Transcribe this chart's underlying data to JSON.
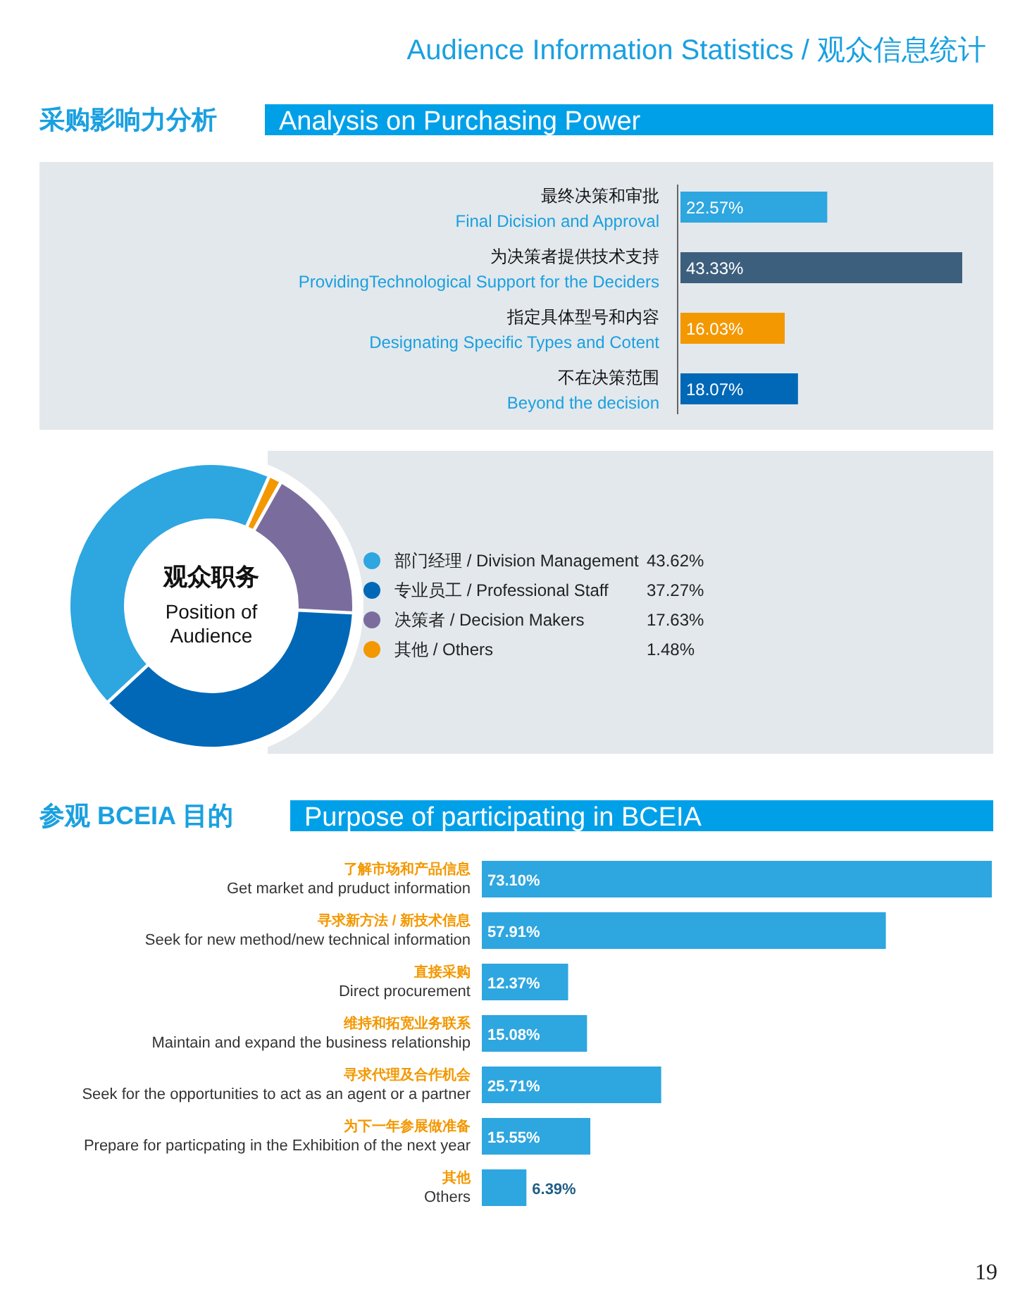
{
  "chart_data": [
    {
      "type": "bar",
      "orientation": "horizontal",
      "title": "采购影响力分析",
      "subtitle": "Analysis on Purchasing Power",
      "annotations": [
        "Audience Information Statistics / 观众信息统计"
      ],
      "categories": [
        "最终决策和审批\nFinal Dicision and Approval",
        "为决策者提供技术支持\nProvidingTechnological Support for the Deciders",
        "指定具体型号和内容\nDesignating Specific Types and Cotent",
        "不在决策范围\nBeyond the decision"
      ],
      "values": [
        22.57,
        43.33,
        16.03,
        18.07
      ],
      "colors": [
        "#2ea6e0",
        "#3d5f7e",
        "#f39800",
        "#0068b7"
      ],
      "value_labels": [
        "22.57%",
        "43.33%",
        "16.03%",
        "18.07%"
      ]
    },
    {
      "type": "donut",
      "title": "观众职务",
      "subtitle": "Position of Audience",
      "legend": "right",
      "categories": [
        "部门经理 / Division Management",
        "专业员工 / Professional Staff",
        "决策者 / Decision Makers",
        "其他 / Others"
      ],
      "values": [
        43.62,
        37.27,
        17.63,
        1.48
      ],
      "colors": [
        "#2ea6e0",
        "#0068b7",
        "#7a6d9e",
        "#f39800"
      ],
      "value_labels": [
        "43.62%",
        "37.27%",
        "17.63%",
        "1.48%"
      ]
    },
    {
      "type": "bar",
      "orientation": "horizontal",
      "title": "参观 BCEIA 目的",
      "subtitle": "Purpose of participating in BCEIA",
      "annotations": [
        "19"
      ],
      "categories": [
        "了解市场和产品信息\nGet market and pruduct information",
        "寻求新方法 / 新技术信息\nSeek for new method/new technical information",
        "直接采购\nDirect procurement",
        "维持和拓宽业务联系\nMaintain and expand the business relationship",
        "寻求代理及合作机会\nSeek for the opportunities to act as an agent or a partner",
        "为下一年参展做准备\nPrepare for particpating in the Exhibition of the next year",
        "其他\nOthers"
      ],
      "values": [
        73.1,
        57.91,
        12.37,
        15.08,
        25.71,
        15.55,
        6.39
      ],
      "colors": [
        "#2ea6e0",
        "#2ea6e0",
        "#2ea6e0",
        "#2ea6e0",
        "#2ea6e0",
        "#2ea6e0",
        "#2ea6e0"
      ],
      "value_labels": [
        "73.10%",
        "57.91%",
        "12.37%",
        "15.08%",
        "25.71%",
        "15.55%",
        "6.39%"
      ]
    }
  ]
}
